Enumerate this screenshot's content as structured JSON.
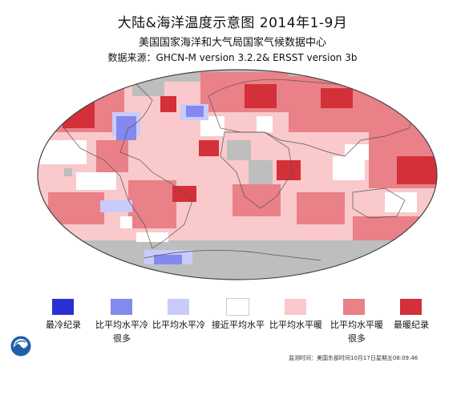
{
  "header": {
    "title": "大陆&海洋温度示意图  2014年1-9月",
    "subtitle": "美国国家海洋和大气局国家气候数据中心",
    "source": "数据来源：GHCN-M version 3.2.2& ERSST version 3b"
  },
  "legend": [
    {
      "label": "最冷纪录",
      "color": "#2b2fd4"
    },
    {
      "label": "比平均水平冷很多",
      "color": "#8489ee"
    },
    {
      "label": "比平均水平冷",
      "color": "#c9cbfa"
    },
    {
      "label": "接近平均水平",
      "color": "#ffffff"
    },
    {
      "label": "比平均水平暖",
      "color": "#f9c9cb"
    },
    {
      "label": "比平均水平暖很多",
      "color": "#ea8088"
    },
    {
      "label": "最暖纪录",
      "color": "#d3303a"
    }
  ],
  "colors": {
    "missing": "#bebebe",
    "border": "#555555"
  },
  "footer": {
    "timestamp": "监测时间：美国东部时间10月17日星期五08:09:46"
  },
  "logo": {
    "name": "noaa-logo"
  }
}
